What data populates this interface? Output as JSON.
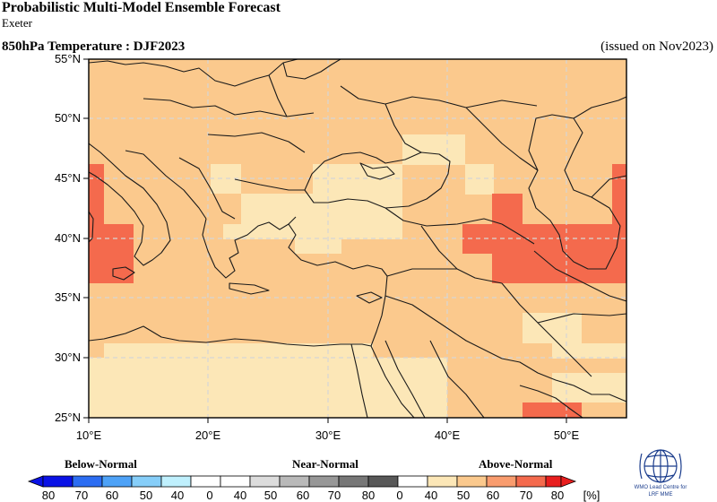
{
  "header": {
    "title": "Probabilistic Multi-Model Ensemble Forecast",
    "subtitle": "Exeter",
    "variable": "850hPa Temperature : DJF2023",
    "issued": "(issued on Nov2023)"
  },
  "map": {
    "lat_labels": [
      "55°N",
      "50°N",
      "45°N",
      "40°N",
      "35°N",
      "30°N",
      "25°N"
    ],
    "lon_labels": [
      "10°E",
      "20°E",
      "30°E",
      "40°E",
      "50°E"
    ],
    "lat_values": [
      55,
      50,
      45,
      40,
      35,
      30,
      25
    ],
    "lon_values": [
      10,
      20,
      30,
      40,
      50
    ],
    "background_color": "#fbc98d"
  },
  "legend": {
    "categories": [
      "Below-Normal",
      "Near-Normal",
      "Above-Normal"
    ],
    "tick_labels": [
      "80",
      "70",
      "60",
      "50",
      "40",
      "0",
      "40",
      "50",
      "60",
      "70",
      "80",
      "0",
      "40",
      "50",
      "60",
      "70",
      "80"
    ],
    "unit": "[%]",
    "colors": [
      "#0a12e6",
      "#2c6df2",
      "#4ea2f7",
      "#86cef9",
      "#bff0fd",
      "#ffffff",
      "#dcdcdc",
      "#b9b9b9",
      "#979797",
      "#777777",
      "#585858",
      "#ffffff",
      "#fce7b7",
      "#fbc98d",
      "#f99c6e",
      "#f46a4d",
      "#e81e1e"
    ]
  },
  "logo": {
    "lines": [
      "WMO Lead Centre for",
      "LRF MME"
    ]
  }
}
